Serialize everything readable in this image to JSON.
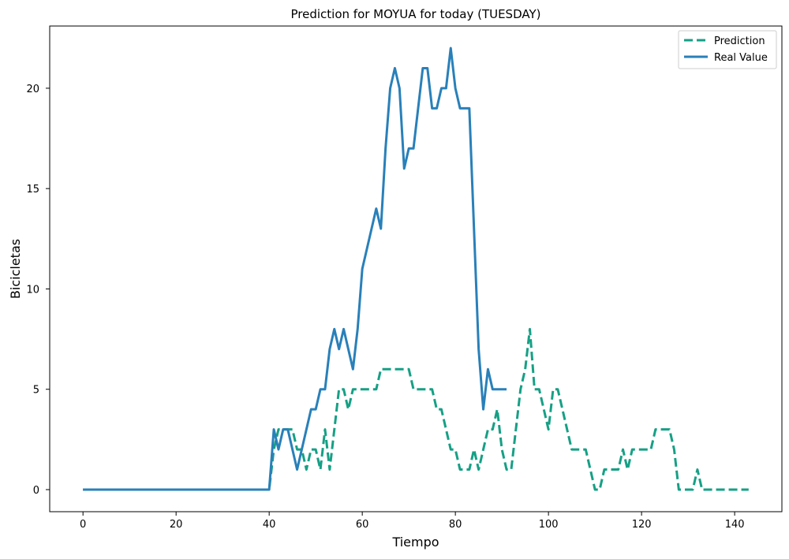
{
  "chart_data": {
    "type": "line",
    "title": "Prediction for MOYUA for today (TUESDAY)",
    "xlabel": "Tiempo",
    "ylabel": "Bicicletas",
    "xlim": [
      -7.15,
      150.15
    ],
    "ylim": [
      -1.1,
      23.1
    ],
    "xticks": [
      0,
      20,
      40,
      60,
      80,
      100,
      120,
      140
    ],
    "yticks": [
      0,
      5,
      10,
      15,
      20
    ],
    "grid": false,
    "legend": {
      "placement": "top-right",
      "entries": [
        "Prediction",
        "Real Value"
      ]
    },
    "series": [
      {
        "name": "Prediction",
        "color": "#16a085",
        "style": "dashed",
        "x": [
          0,
          1,
          2,
          3,
          4,
          5,
          6,
          7,
          8,
          9,
          10,
          11,
          12,
          13,
          14,
          15,
          16,
          17,
          18,
          19,
          20,
          21,
          22,
          23,
          24,
          25,
          26,
          27,
          28,
          29,
          30,
          31,
          32,
          33,
          34,
          35,
          36,
          37,
          38,
          39,
          40,
          41,
          42,
          43,
          44,
          45,
          46,
          47,
          48,
          49,
          50,
          51,
          52,
          53,
          54,
          55,
          56,
          57,
          58,
          59,
          60,
          61,
          62,
          63,
          64,
          65,
          66,
          67,
          68,
          69,
          70,
          71,
          72,
          73,
          74,
          75,
          76,
          77,
          78,
          79,
          80,
          81,
          82,
          83,
          84,
          85,
          86,
          87,
          88,
          89,
          90,
          91,
          92,
          93,
          94,
          95,
          96,
          97,
          98,
          99,
          100,
          101,
          102,
          103,
          104,
          105,
          106,
          107,
          108,
          109,
          110,
          111,
          112,
          113,
          114,
          115,
          116,
          117,
          118,
          119,
          120,
          121,
          122,
          123,
          124,
          125,
          126,
          127,
          128,
          129,
          130,
          131,
          132,
          133,
          134,
          135,
          136,
          137,
          138,
          139,
          140,
          141,
          142,
          143
        ],
        "values": [
          0,
          0,
          0,
          0,
          0,
          0,
          0,
          0,
          0,
          0,
          0,
          0,
          0,
          0,
          0,
          0,
          0,
          0,
          0,
          0,
          0,
          0,
          0,
          0,
          0,
          0,
          0,
          0,
          0,
          0,
          0,
          0,
          0,
          0,
          0,
          0,
          0,
          0,
          0,
          0,
          0,
          2,
          3,
          3,
          3,
          3,
          2,
          2,
          1,
          2,
          2,
          1,
          3,
          1,
          3,
          5,
          5,
          4,
          5,
          5,
          5,
          5,
          5,
          5,
          6,
          6,
          6,
          6,
          6,
          6,
          6,
          5,
          5,
          5,
          5,
          5,
          4,
          4,
          3,
          2,
          2,
          1,
          1,
          1,
          2,
          1,
          2,
          3,
          3,
          4,
          2,
          1,
          1,
          3,
          5,
          6,
          8,
          5,
          5,
          4,
          3,
          5,
          5,
          4,
          3,
          2,
          2,
          2,
          2,
          1,
          0,
          0,
          1,
          1,
          1,
          1,
          2,
          1,
          2,
          2,
          2,
          2,
          2,
          3,
          3,
          3,
          3,
          2,
          0,
          0,
          0,
          0,
          1,
          0,
          0,
          0,
          0,
          0,
          0,
          0,
          0,
          0,
          0,
          0
        ]
      },
      {
        "name": "Real Value",
        "color": "#2980b9",
        "style": "solid",
        "x": [
          0,
          1,
          2,
          3,
          4,
          5,
          6,
          7,
          8,
          9,
          10,
          11,
          12,
          13,
          14,
          15,
          16,
          17,
          18,
          19,
          20,
          21,
          22,
          23,
          24,
          25,
          26,
          27,
          28,
          29,
          30,
          31,
          32,
          33,
          34,
          35,
          36,
          37,
          38,
          39,
          40,
          41,
          42,
          43,
          44,
          45,
          46,
          47,
          48,
          49,
          50,
          51,
          52,
          53,
          54,
          55,
          56,
          57,
          58,
          59,
          60,
          61,
          62,
          63,
          64,
          65,
          66,
          67,
          68,
          69,
          70,
          71,
          72,
          73,
          74,
          75,
          76,
          77,
          78,
          79,
          80,
          81,
          82,
          83,
          84,
          85,
          86,
          87,
          88,
          89,
          90,
          91
        ],
        "values": [
          0,
          0,
          0,
          0,
          0,
          0,
          0,
          0,
          0,
          0,
          0,
          0,
          0,
          0,
          0,
          0,
          0,
          0,
          0,
          0,
          0,
          0,
          0,
          0,
          0,
          0,
          0,
          0,
          0,
          0,
          0,
          0,
          0,
          0,
          0,
          0,
          0,
          0,
          0,
          0,
          0,
          3,
          2,
          3,
          3,
          2,
          1,
          2,
          3,
          4,
          4,
          5,
          5,
          7,
          8,
          7,
          8,
          7,
          6,
          8,
          11,
          12,
          13,
          14,
          13,
          17,
          20,
          21,
          20,
          16,
          17,
          17,
          19,
          21,
          21,
          19,
          19,
          20,
          20,
          22,
          20,
          19,
          19,
          19,
          13,
          7,
          4,
          6,
          5,
          5,
          5,
          5
        ]
      }
    ]
  }
}
